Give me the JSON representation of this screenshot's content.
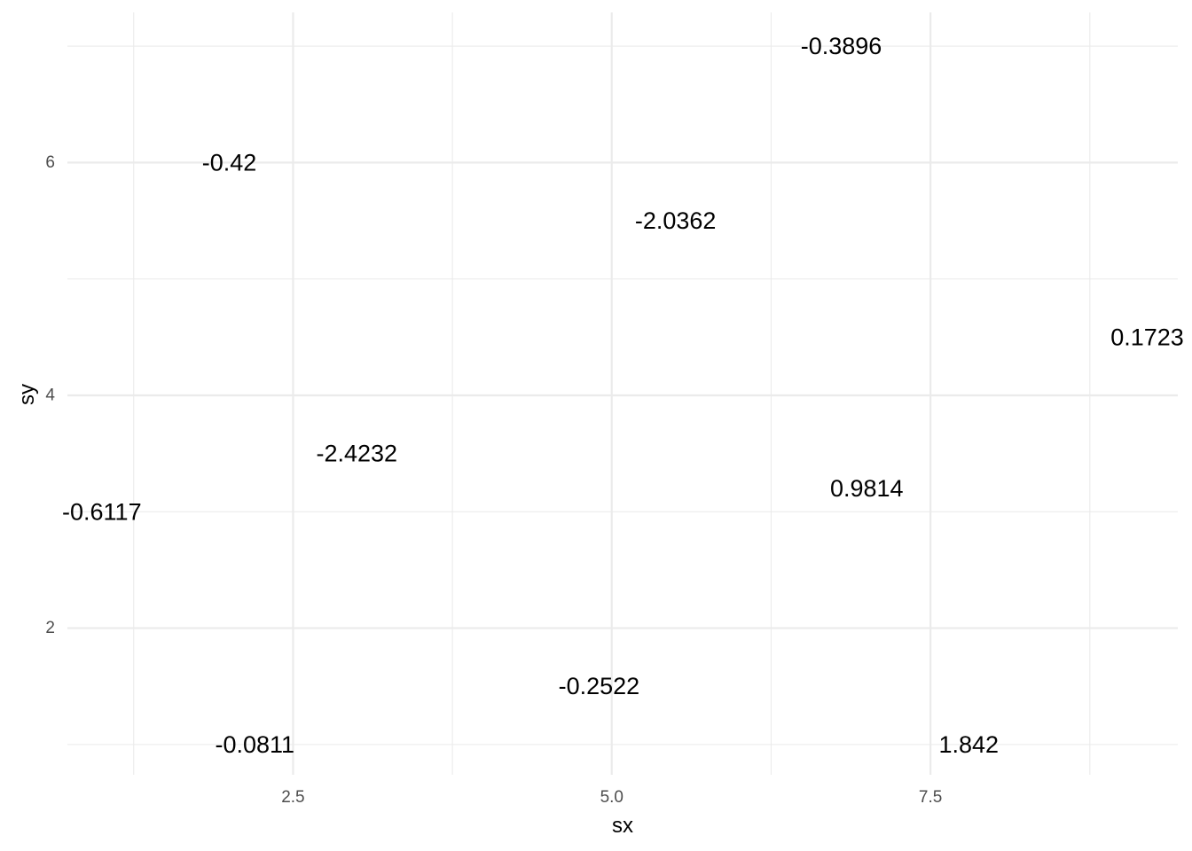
{
  "chart_data": {
    "type": "scatter",
    "geom": "text",
    "xlabel": "sx",
    "ylabel": "sy",
    "xlim": [
      0.73,
      9.44
    ],
    "ylim": [
      0.74,
      7.29
    ],
    "x_major_ticks": [
      2.5,
      5.0,
      7.5
    ],
    "x_tick_labels": [
      "2.5",
      "5.0",
      "7.5"
    ],
    "x_minor_ticks": [
      1.25,
      3.75,
      6.25,
      8.75
    ],
    "y_major_ticks": [
      2,
      4,
      6
    ],
    "y_tick_labels": [
      "2",
      "4",
      "6"
    ],
    "y_minor_ticks": [
      1,
      3,
      5,
      7
    ],
    "grid": true,
    "points": [
      {
        "x": 6.8,
        "y": 7.0,
        "label": "-0.3896"
      },
      {
        "x": 2.0,
        "y": 6.0,
        "label": "-0.42"
      },
      {
        "x": 5.5,
        "y": 5.5,
        "label": "-2.0362"
      },
      {
        "x": 9.2,
        "y": 4.5,
        "label": "0.1723"
      },
      {
        "x": 3.0,
        "y": 3.5,
        "label": "-2.4232"
      },
      {
        "x": 7.0,
        "y": 3.2,
        "label": "0.9814"
      },
      {
        "x": 1.0,
        "y": 3.0,
        "label": "-0.6117"
      },
      {
        "x": 4.9,
        "y": 1.5,
        "label": "-0.2522"
      },
      {
        "x": 2.2,
        "y": 1.0,
        "label": "-0.0811"
      },
      {
        "x": 7.8,
        "y": 1.0,
        "label": "1.842"
      }
    ]
  }
}
